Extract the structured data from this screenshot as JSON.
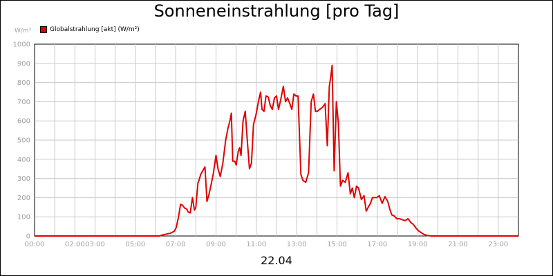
{
  "chart_data": {
    "type": "line",
    "title": "Sonneneinstrahlung [pro Tag]",
    "unit_label": "W/m²",
    "date_label": "22.04",
    "ylim": [
      0,
      1000
    ],
    "y_ticks": [
      "0",
      "100",
      "200",
      "300",
      "400",
      "500",
      "600",
      "700",
      "800",
      "900",
      "1000"
    ],
    "x_range_hours": [
      0,
      24
    ],
    "x_ticks": [
      {
        "h": 0,
        "label": "00:00"
      },
      {
        "h": 2,
        "label": "02:00"
      },
      {
        "h": 3,
        "label": "03:00"
      },
      {
        "h": 5,
        "label": "05:00"
      },
      {
        "h": 7,
        "label": "07:00"
      },
      {
        "h": 9,
        "label": "09:00"
      },
      {
        "h": 11,
        "label": "11:00"
      },
      {
        "h": 13,
        "label": "13:00"
      },
      {
        "h": 15,
        "label": "15:00"
      },
      {
        "h": 17,
        "label": "17:00"
      },
      {
        "h": 19,
        "label": "19:00"
      },
      {
        "h": 21,
        "label": "21:00"
      },
      {
        "h": 23,
        "label": "23:00"
      }
    ],
    "grid": true,
    "legend": "top-left",
    "series": [
      {
        "name": "Globalstrahlung [akt] (W/m²)",
        "color": "#e00000",
        "x": [
          0,
          6.17,
          6.34,
          6.55,
          6.76,
          6.93,
          7.03,
          7.14,
          7.24,
          7.34,
          7.45,
          7.55,
          7.62,
          7.72,
          7.83,
          7.93,
          8.0,
          8.1,
          8.17,
          8.24,
          8.34,
          8.45,
          8.55,
          8.66,
          8.76,
          8.86,
          9.0,
          9.1,
          9.21,
          9.34,
          9.48,
          9.59,
          9.69,
          9.76,
          9.83,
          9.93,
          10.0,
          10.1,
          10.17,
          10.24,
          10.34,
          10.45,
          10.55,
          10.66,
          10.76,
          10.86,
          11.0,
          11.1,
          11.21,
          11.28,
          11.38,
          11.48,
          11.59,
          11.69,
          11.79,
          11.9,
          12.0,
          12.1,
          12.21,
          12.34,
          12.45,
          12.55,
          12.66,
          12.76,
          12.86,
          12.97,
          13.07,
          13.21,
          13.31,
          13.45,
          13.59,
          13.72,
          13.83,
          13.93,
          14.03,
          14.14,
          14.28,
          14.41,
          14.52,
          14.62,
          14.69,
          14.76,
          14.86,
          14.97,
          15.07,
          15.17,
          15.28,
          15.41,
          15.55,
          15.66,
          15.76,
          15.86,
          15.97,
          16.07,
          16.21,
          16.34,
          16.45,
          16.55,
          16.66,
          16.76,
          16.86,
          16.97,
          17.1,
          17.24,
          17.38,
          17.52,
          17.62,
          17.72,
          17.83,
          17.97,
          18.1,
          18.24,
          18.38,
          18.52,
          18.66,
          18.79,
          18.93,
          19.07,
          19.28,
          19.48,
          19.69,
          19.9,
          20.1,
          20.31,
          24
        ],
        "y": [
          0,
          0,
          5,
          10,
          15,
          25,
          45,
          100,
          165,
          160,
          145,
          140,
          125,
          120,
          200,
          135,
          150,
          275,
          295,
          320,
          340,
          360,
          180,
          220,
          270,
          320,
          420,
          350,
          310,
          380,
          500,
          560,
          600,
          640,
          390,
          390,
          370,
          440,
          460,
          420,
          600,
          650,
          500,
          350,
          380,
          580,
          640,
          700,
          750,
          660,
          650,
          730,
          725,
          680,
          660,
          720,
          730,
          660,
          710,
          780,
          700,
          720,
          690,
          660,
          740,
          730,
          730,
          320,
          290,
          280,
          330,
          700,
          740,
          650,
          650,
          660,
          670,
          690,
          470,
          780,
          830,
          890,
          340,
          700,
          590,
          260,
          290,
          280,
          330,
          220,
          250,
          200,
          260,
          250,
          190,
          210,
          130,
          150,
          170,
          200,
          200,
          200,
          210,
          170,
          205,
          180,
          140,
          110,
          105,
          90,
          90,
          85,
          80,
          90,
          70,
          60,
          40,
          25,
          10,
          2,
          0,
          0,
          0,
          0,
          0
        ]
      }
    ]
  }
}
